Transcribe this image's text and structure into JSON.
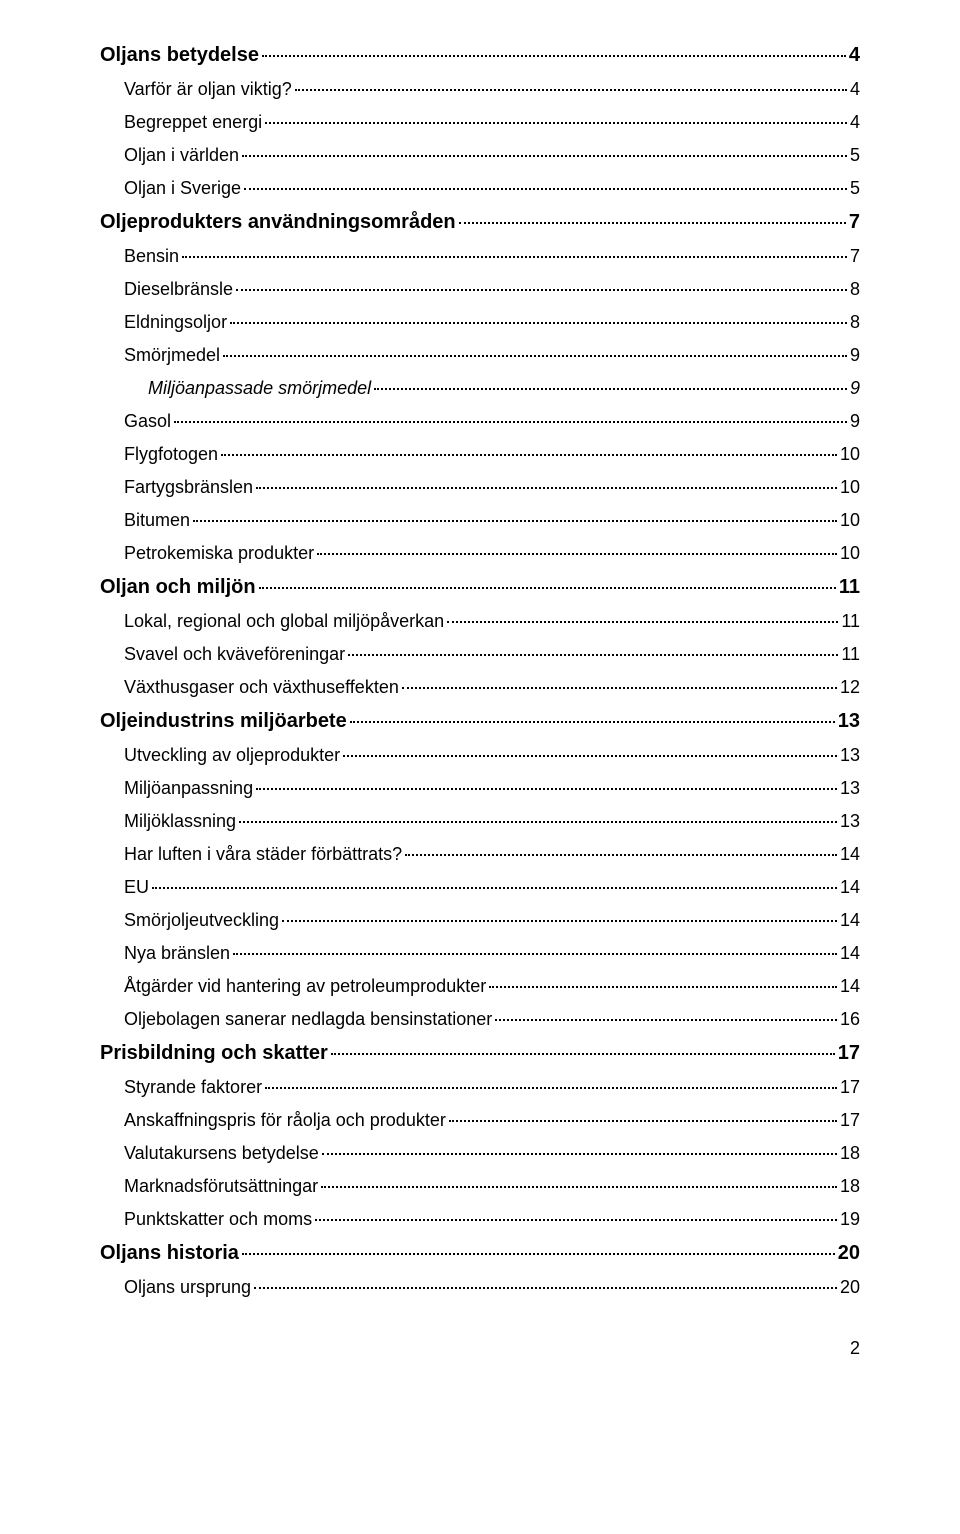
{
  "toc": [
    {
      "level": 1,
      "label": "Oljans betydelse",
      "page": "4"
    },
    {
      "level": 2,
      "label": "Varför är oljan viktig?",
      "page": "4"
    },
    {
      "level": 2,
      "label": "Begreppet energi",
      "page": "4"
    },
    {
      "level": 2,
      "label": "Oljan i världen",
      "page": "5"
    },
    {
      "level": 2,
      "label": "Oljan i Sverige",
      "page": "5"
    },
    {
      "level": 1,
      "label": "Oljeprodukters användningsområden",
      "page": "7"
    },
    {
      "level": 2,
      "label": "Bensin",
      "page": "7"
    },
    {
      "level": 2,
      "label": "Dieselbränsle",
      "page": "8"
    },
    {
      "level": 2,
      "label": "Eldningsoljor",
      "page": "8"
    },
    {
      "level": 2,
      "label": "Smörjmedel",
      "page": "9"
    },
    {
      "level": 3,
      "label": "Miljöanpassade smörjmedel",
      "page": "9"
    },
    {
      "level": 2,
      "label": "Gasol",
      "page": "9"
    },
    {
      "level": 2,
      "label": "Flygfotogen",
      "page": "10"
    },
    {
      "level": 2,
      "label": "Fartygsbränslen",
      "page": "10"
    },
    {
      "level": 2,
      "label": "Bitumen",
      "page": "10"
    },
    {
      "level": 2,
      "label": "Petrokemiska produkter",
      "page": "10"
    },
    {
      "level": 1,
      "label": "Oljan och miljön",
      "page": "11"
    },
    {
      "level": 2,
      "label": "Lokal, regional och global miljöpåverkan",
      "page": "11"
    },
    {
      "level": 2,
      "label": "Svavel och kväveföreningar",
      "page": "11"
    },
    {
      "level": 2,
      "label": "Växthusgaser och växthuseffekten",
      "page": "12"
    },
    {
      "level": 1,
      "label": "Oljeindustrins miljöarbete",
      "page": "13"
    },
    {
      "level": 2,
      "label": "Utveckling av oljeprodukter",
      "page": "13"
    },
    {
      "level": 2,
      "label": "Miljöanpassning",
      "page": "13"
    },
    {
      "level": 2,
      "label": "Miljöklassning",
      "page": "13"
    },
    {
      "level": 2,
      "label": "Har luften i våra städer förbättrats?",
      "page": "14"
    },
    {
      "level": 2,
      "label": "EU",
      "page": "14"
    },
    {
      "level": 2,
      "label": "Smörjoljeutveckling",
      "page": "14"
    },
    {
      "level": 2,
      "label": "Nya bränslen",
      "page": "14"
    },
    {
      "level": 2,
      "label": "Åtgärder vid hantering av petroleumprodukter",
      "page": "14"
    },
    {
      "level": 2,
      "label": "Oljebolagen sanerar nedlagda bensinstationer",
      "page": "16"
    },
    {
      "level": 1,
      "label": "Prisbildning och skatter",
      "page": "17"
    },
    {
      "level": 2,
      "label": "Styrande faktorer",
      "page": "17"
    },
    {
      "level": 2,
      "label": "Anskaffningspris för råolja och produkter",
      "page": "17"
    },
    {
      "level": 2,
      "label": "Valutakursens betydelse",
      "page": "18"
    },
    {
      "level": 2,
      "label": "Marknadsförutsättningar",
      "page": "18"
    },
    {
      "level": 2,
      "label": "Punktskatter och moms",
      "page": "19"
    },
    {
      "level": 1,
      "label": "Oljans historia",
      "page": "20"
    },
    {
      "level": 2,
      "label": "Oljans ursprung",
      "page": "20"
    }
  ],
  "pageNumber": "2"
}
